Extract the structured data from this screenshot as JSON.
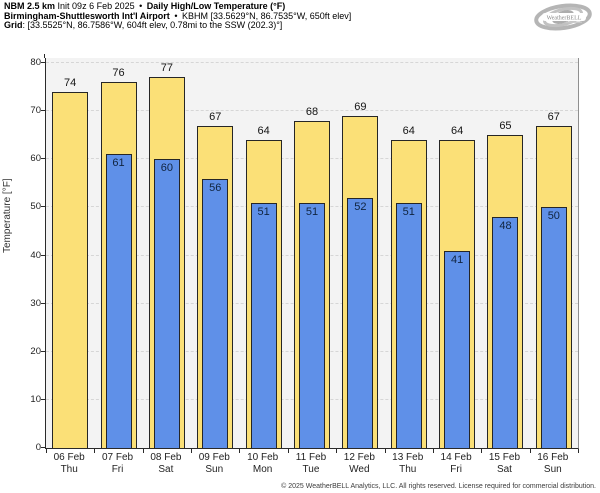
{
  "header": {
    "line1": {
      "model": "NBM 2.5 km",
      "init": "Init 09z 6 Feb 2025",
      "sep": "•",
      "title": "Daily High/Low Temperature (°F)"
    },
    "line2": {
      "station": "Birmingham-Shuttlesworth Int'l Airport",
      "sep": "•",
      "details": "KBHM [33.5629°N, 86.7535°W, 650ft elev]"
    },
    "line3": {
      "label": "Grid",
      "details": ": [33.5525°N, 86.7586°W, 604ft elev, 0.78mi to the SSW (202.3)°]"
    }
  },
  "logo": {
    "name": "WeatherBELL",
    "text": "WeatherBELL"
  },
  "chart_data": {
    "type": "bar",
    "title": "Daily High/Low Temperature (°F)",
    "xlabel": "",
    "ylabel": "Temperature [°F]",
    "ylim": [
      0,
      80
    ],
    "yticks": [
      0,
      10,
      20,
      30,
      40,
      50,
      60,
      70,
      80
    ],
    "grid": "horizontal-dashed",
    "legend_position": "none",
    "categories": [
      {
        "date": "06 Feb",
        "day": "Thu"
      },
      {
        "date": "07 Feb",
        "day": "Fri"
      },
      {
        "date": "08 Feb",
        "day": "Sat"
      },
      {
        "date": "09 Feb",
        "day": "Sun"
      },
      {
        "date": "10 Feb",
        "day": "Mon"
      },
      {
        "date": "11 Feb",
        "day": "Tue"
      },
      {
        "date": "12 Feb",
        "day": "Wed"
      },
      {
        "date": "13 Feb",
        "day": "Thu"
      },
      {
        "date": "14 Feb",
        "day": "Fri"
      },
      {
        "date": "15 Feb",
        "day": "Sat"
      },
      {
        "date": "16 Feb",
        "day": "Sun"
      }
    ],
    "series": [
      {
        "name": "High",
        "values": [
          74,
          76,
          77,
          67,
          64,
          68,
          69,
          64,
          64,
          65,
          67
        ]
      },
      {
        "name": "Low",
        "values": [
          null,
          61,
          60,
          56,
          51,
          51,
          52,
          51,
          41,
          48,
          50
        ]
      }
    ]
  },
  "colors": {
    "high": "#fbe077",
    "low": "#5f90e8",
    "bar_border": "#262626",
    "plot_bg": "#f3f3f3",
    "grid": "#d6d6d6",
    "logo_gray": "#b5b5b5"
  },
  "footer": {
    "copyright": "© 2025 WeatherBELL Analytics, LLC. All rights reserved. License required for commercial distribution."
  }
}
